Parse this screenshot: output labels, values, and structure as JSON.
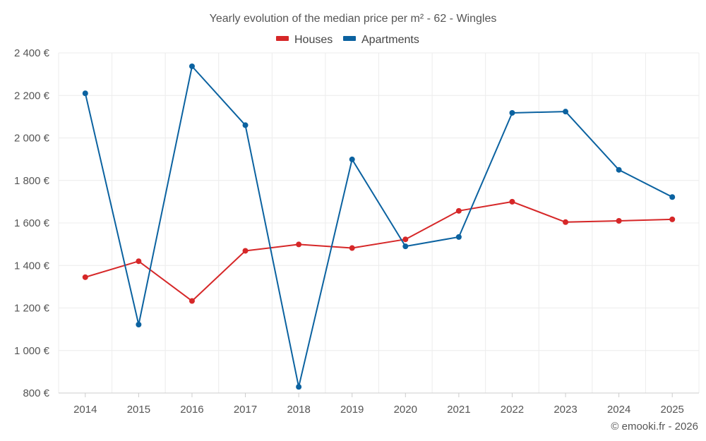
{
  "chart_data": {
    "type": "line",
    "title": "Yearly evolution of the median price per m² - 62 - Wingles",
    "categories": [
      "2014",
      "2015",
      "2016",
      "2017",
      "2018",
      "2019",
      "2020",
      "2021",
      "2022",
      "2023",
      "2024",
      "2025"
    ],
    "series": [
      {
        "name": "Houses",
        "color": "#d62728",
        "values": [
          1345,
          1420,
          1233,
          1469,
          1499,
          1482,
          1523,
          1657,
          1700,
          1604,
          1610,
          1617
        ]
      },
      {
        "name": "Apartments",
        "color": "#0b62a0",
        "values": [
          2210,
          1122,
          2337,
          2060,
          829,
          1899,
          1490,
          1534,
          2118,
          2124,
          1850,
          1722
        ]
      }
    ],
    "ylim": [
      800,
      2400
    ],
    "yticks": [
      800,
      1000,
      1200,
      1400,
      1600,
      1800,
      2000,
      2200,
      2400
    ],
    "ytick_labels": [
      "800 €",
      "1 000 €",
      "1 200 €",
      "1 400 €",
      "1 600 €",
      "1 800 €",
      "2 000 €",
      "2 200 €",
      "2 400 €"
    ],
    "legend_position": "top-center",
    "grid": true,
    "credit": "© emooki.fr - 2026"
  }
}
